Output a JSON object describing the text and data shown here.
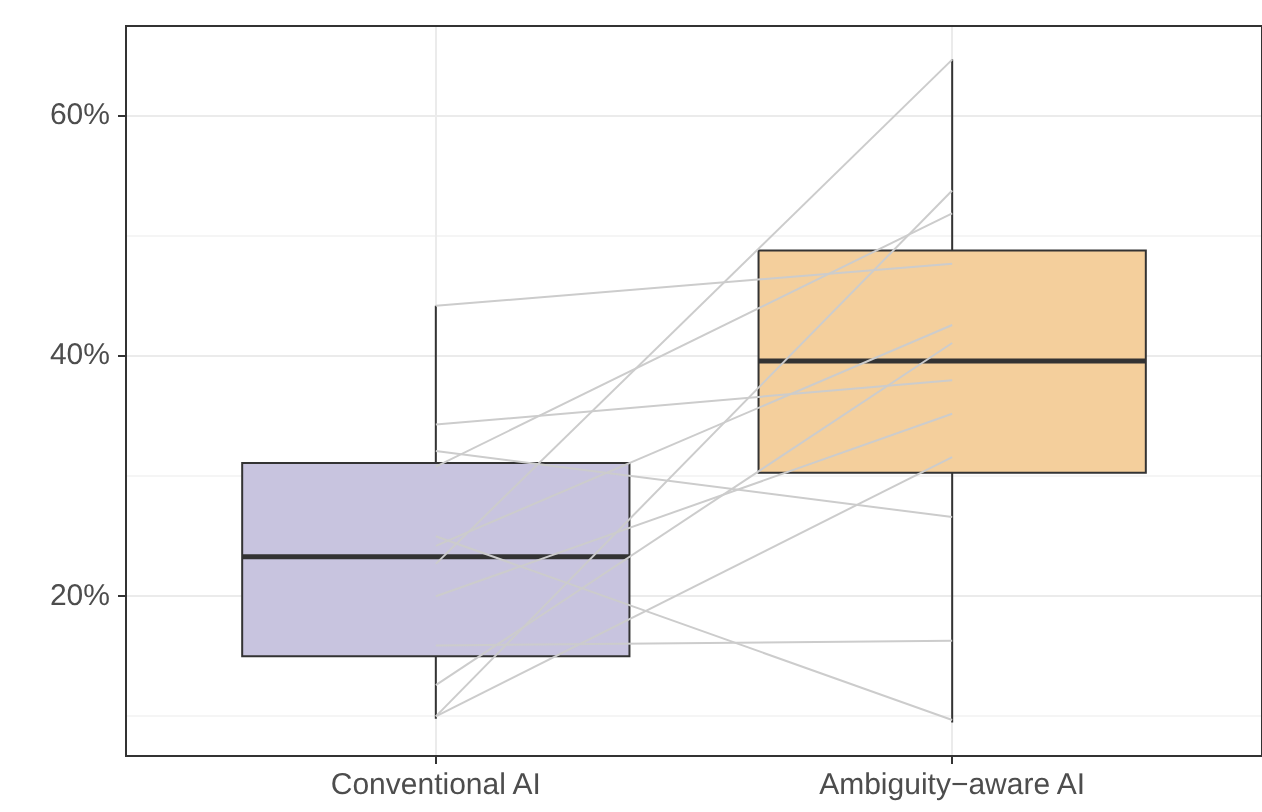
{
  "chart_data": {
    "type": "box",
    "categories": [
      "Conventional AI",
      "Ambiguity−aware AI"
    ],
    "boxes": [
      {
        "low": 9.8,
        "q1": 15,
        "median": 23.3,
        "q3": 31.1,
        "high": 44.2
      },
      {
        "low": 9.5,
        "q1": 30.3,
        "median": 39.6,
        "q3": 48.8,
        "high": 64.7
      }
    ],
    "colors": [
      "#c8c4df",
      "#f4cf9c"
    ],
    "ylim": [
      6.7,
      67.5
    ],
    "yticks": [
      {
        "value": 10,
        "label": null
      },
      {
        "value": 20,
        "label": "20%"
      },
      {
        "value": 30,
        "label": null
      },
      {
        "value": 40,
        "label": "40%"
      },
      {
        "value": 50,
        "label": null
      },
      {
        "value": 60,
        "label": "60%"
      }
    ],
    "grid": true,
    "legend": false,
    "marker": "none",
    "line_style": "solid",
    "series": [
      {
        "type": "line",
        "color": "#cccccc",
        "values": [
          44.2,
          47.7
        ]
      },
      {
        "type": "line",
        "color": "#cccccc",
        "values": [
          34.3,
          38
        ]
      },
      {
        "type": "line",
        "color": "#cccccc",
        "values": [
          32.1,
          26.6
        ]
      },
      {
        "type": "line",
        "color": "#cccccc",
        "values": [
          30.8,
          51.9
        ]
      },
      {
        "type": "line",
        "color": "#cccccc",
        "values": [
          25,
          9.7
        ]
      },
      {
        "type": "line",
        "color": "#cccccc",
        "values": [
          24.2,
          42.6
        ]
      },
      {
        "type": "line",
        "color": "#cccccc",
        "values": [
          22.7,
          64.7
        ]
      },
      {
        "type": "line",
        "color": "#cccccc",
        "values": [
          20,
          35.2
        ]
      },
      {
        "type": "line",
        "color": "#cccccc",
        "values": [
          15.9,
          16.3
        ]
      },
      {
        "type": "line",
        "color": "#cccccc",
        "values": [
          12.6,
          41.1
        ]
      },
      {
        "type": "line",
        "color": "#cccccc",
        "values": [
          10,
          53.8
        ]
      },
      {
        "type": "line",
        "color": "#cccccc",
        "values": [
          10,
          31.6
        ]
      }
    ]
  }
}
